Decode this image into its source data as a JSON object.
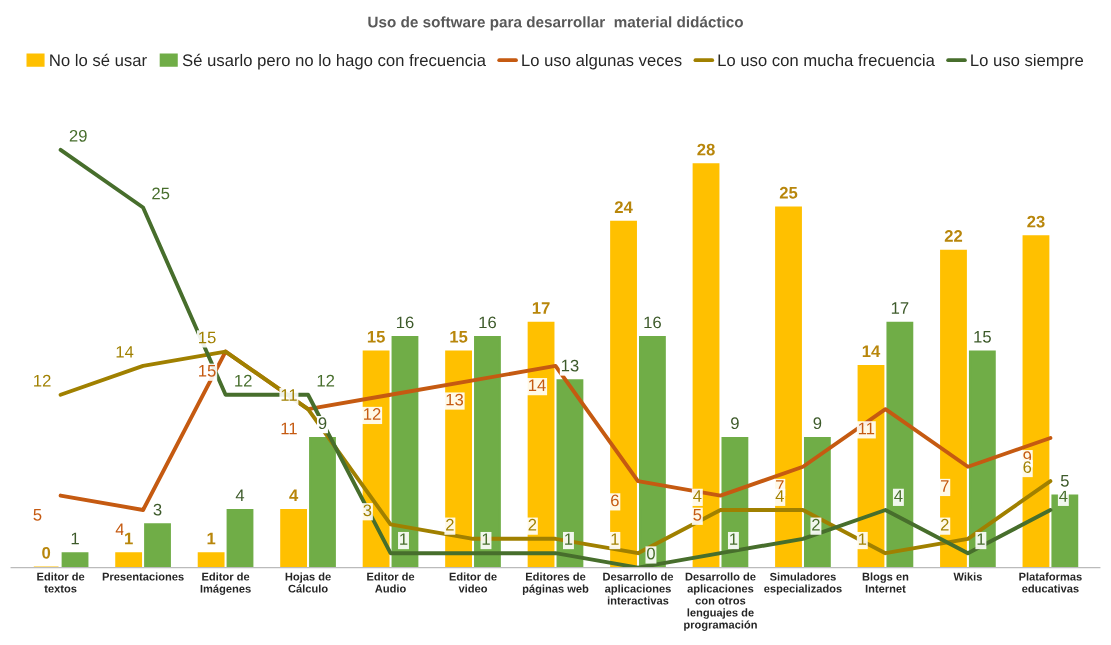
{
  "chart_data": {
    "type": "bar",
    "title": "Uso de software para desarrollar  material didáctico",
    "categories": [
      "Editor de textos",
      "Presentaciones",
      "Editor de Imágenes",
      "Hojas de Cálculo",
      "Editor de Audio",
      "Editor de video",
      "Editores de páginas web",
      "Desarrollo de aplicaciones interactivas",
      "Desarrollo de aplicaciones con otros lenguajes de programación",
      "Simuladores especializados",
      "Blogs en Internet",
      "Wikis",
      "Plataformas educativas"
    ],
    "series": [
      {
        "name": "No lo sé usar",
        "color": "#ffc000",
        "values": [
          0,
          1,
          1,
          4,
          15,
          15,
          17,
          24,
          28,
          25,
          14,
          22,
          23
        ]
      },
      {
        "name": "Sé usarlo pero no lo hago con frecuencia",
        "color": "#70ad47",
        "values": [
          1,
          3,
          4,
          9,
          16,
          16,
          13,
          16,
          9,
          9,
          17,
          15,
          5
        ]
      },
      {
        "name": "Lo uso algunas veces",
        "type": "line",
        "color": "#c55a11",
        "values": [
          5,
          4,
          15,
          11,
          12,
          13,
          14,
          6,
          5,
          7,
          11,
          7,
          9
        ]
      },
      {
        "name": "Lo uso con mucha frecuencia",
        "type": "line",
        "color": "#a08000",
        "values": [
          12,
          14,
          15,
          11,
          3,
          2,
          2,
          1,
          4,
          4,
          1,
          2,
          6
        ]
      },
      {
        "name": "Lo uso siempre",
        "type": "line",
        "color": "#476e2c",
        "values": [
          29,
          25,
          12,
          12,
          1,
          1,
          1,
          0,
          1,
          2,
          4,
          1,
          4
        ]
      }
    ],
    "data_labels": true,
    "legend": "top",
    "grid": false
  }
}
